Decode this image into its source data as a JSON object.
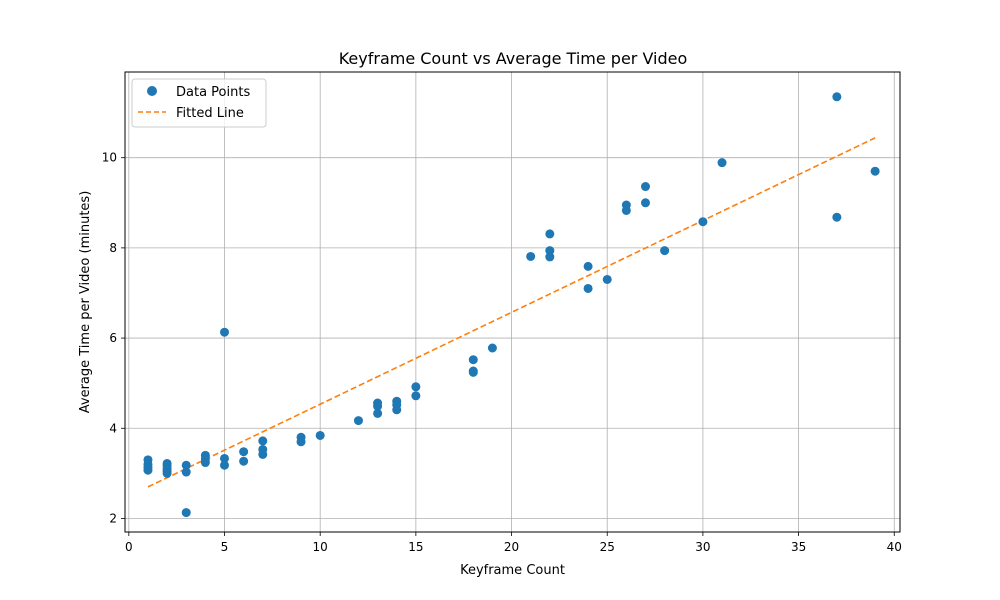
{
  "chart_data": {
    "type": "scatter",
    "title": "Keyframe Count vs Average Time per Video",
    "xlabel": "Keyframe Count",
    "ylabel": "Average Time per Video (minutes)",
    "xlim": [
      -0.2,
      40.3
    ],
    "ylim": [
      1.7,
      11.9
    ],
    "xticks": [
      0,
      5,
      10,
      15,
      20,
      25,
      30,
      35,
      40
    ],
    "yticks": [
      2,
      4,
      6,
      8,
      10
    ],
    "grid": true,
    "legend_position": "top-left",
    "colors": {
      "points": "#1f77b4",
      "line": "#ff7f0e"
    },
    "series": [
      {
        "name": "Data Points",
        "type": "scatter",
        "x": [
          1,
          1,
          1,
          1,
          2,
          2,
          2,
          2,
          2,
          3,
          3,
          3,
          4,
          4,
          4,
          5,
          5,
          5,
          6,
          6,
          7,
          7,
          7,
          9,
          9,
          10,
          12,
          13,
          13,
          13,
          14,
          14,
          14,
          15,
          15,
          18,
          18,
          18,
          19,
          21,
          22,
          22,
          22,
          24,
          24,
          25,
          26,
          26,
          27,
          27,
          28,
          30,
          31,
          37,
          37,
          39
        ],
        "y": [
          3.3,
          3.2,
          3.13,
          3.07,
          3.22,
          3.17,
          3.1,
          3.05,
          3.0,
          3.18,
          3.03,
          2.13,
          3.4,
          3.32,
          3.24,
          6.13,
          3.33,
          3.18,
          3.48,
          3.27,
          3.72,
          3.53,
          3.42,
          3.8,
          3.7,
          3.84,
          4.17,
          4.56,
          4.49,
          4.33,
          4.6,
          4.52,
          4.41,
          4.92,
          4.72,
          5.52,
          5.27,
          5.24,
          5.78,
          7.81,
          8.31,
          7.94,
          7.8,
          7.59,
          7.1,
          7.3,
          8.95,
          8.83,
          9.36,
          9.0,
          7.94,
          8.58,
          9.89,
          11.35,
          8.68,
          9.7
        ]
      },
      {
        "name": "Fitted Line",
        "type": "line",
        "style": "dashed",
        "x": [
          1,
          39
        ],
        "y": [
          2.7,
          10.44
        ]
      }
    ]
  }
}
